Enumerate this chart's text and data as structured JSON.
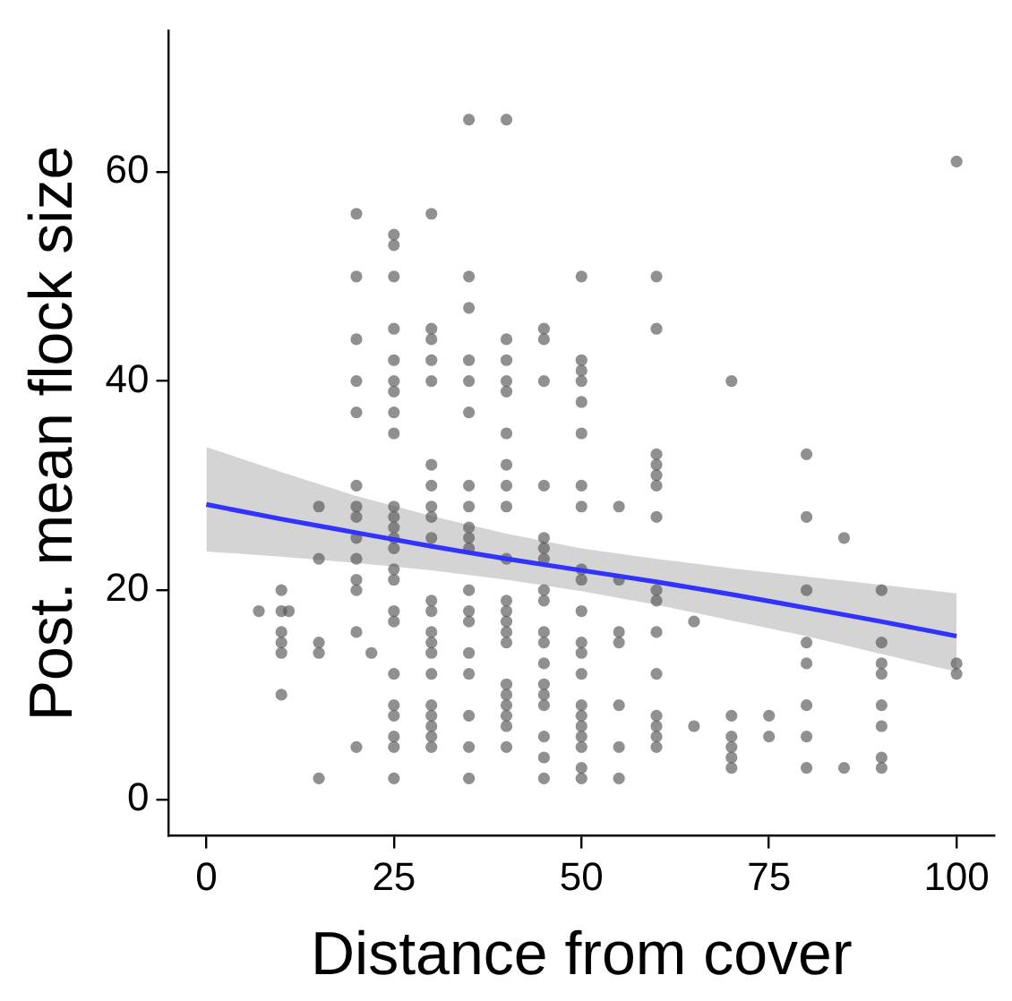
{
  "chart_data": {
    "type": "scatter",
    "xlabel": "Distance from cover",
    "ylabel": "Post. mean flock size",
    "xlim": [
      -5,
      105
    ],
    "xticks": [
      0,
      25,
      50,
      75,
      100
    ],
    "ylim": [
      -3.5,
      73.5
    ],
    "yticks": [
      0,
      20,
      40,
      60
    ],
    "grid": false,
    "legend": false,
    "marker": "circle",
    "series": [
      {
        "color": "#555555",
        "x": [
          7,
          10,
          10,
          10,
          10,
          10,
          10,
          11,
          15,
          15,
          15,
          15,
          15,
          20,
          20,
          20,
          20,
          20,
          20,
          20,
          20,
          20,
          20,
          20,
          20,
          20,
          20,
          22,
          25,
          25,
          25,
          25,
          25,
          25,
          25,
          25,
          25,
          25,
          25,
          25,
          25,
          25,
          25,
          25,
          25,
          25,
          25,
          25,
          25,
          25,
          25,
          25,
          30,
          30,
          30,
          30,
          30,
          30,
          30,
          30,
          30,
          30,
          30,
          30,
          30,
          30,
          30,
          30,
          30,
          30,
          30,
          30,
          30,
          35,
          35,
          35,
          35,
          35,
          35,
          35,
          35,
          35,
          35,
          35,
          35,
          35,
          35,
          35,
          35,
          35,
          35,
          35,
          40,
          40,
          40,
          40,
          40,
          40,
          40,
          40,
          40,
          40,
          40,
          40,
          40,
          40,
          40,
          40,
          40,
          40,
          40,
          40,
          40,
          45,
          45,
          45,
          45,
          45,
          45,
          45,
          45,
          45,
          45,
          45,
          45,
          45,
          45,
          45,
          45,
          45,
          45,
          50,
          50,
          50,
          50,
          50,
          50,
          50,
          50,
          50,
          50,
          50,
          50,
          50,
          50,
          50,
          50,
          50,
          50,
          50,
          50,
          50,
          55,
          55,
          55,
          55,
          55,
          55,
          55,
          60,
          60,
          60,
          60,
          60,
          60,
          60,
          60,
          60,
          60,
          60,
          60,
          60,
          60,
          60,
          65,
          65,
          70,
          70,
          70,
          70,
          70,
          70,
          75,
          75,
          80,
          80,
          80,
          80,
          80,
          80,
          80,
          80,
          85,
          85,
          90,
          90,
          90,
          90,
          90,
          90,
          90,
          90,
          100,
          100,
          100
        ],
        "values": [
          18,
          20,
          18,
          16,
          15,
          14,
          10,
          18,
          28,
          23,
          15,
          14,
          2,
          56,
          50,
          44,
          40,
          37,
          30,
          28,
          27,
          25,
          23,
          21,
          20,
          16,
          5,
          14,
          54,
          53,
          50,
          45,
          42,
          40,
          39,
          37,
          35,
          28,
          27,
          26,
          25,
          24,
          22,
          21,
          18,
          17,
          12,
          9,
          8,
          6,
          5,
          2,
          56,
          45,
          44,
          42,
          40,
          32,
          30,
          28,
          27,
          25,
          19,
          18,
          16,
          15,
          14,
          12,
          9,
          8,
          7,
          6,
          5,
          65,
          50,
          47,
          42,
          40,
          37,
          30,
          28,
          26,
          25,
          24,
          20,
          18,
          17,
          14,
          12,
          8,
          5,
          2,
          65,
          44,
          42,
          40,
          39,
          35,
          32,
          30,
          28,
          23,
          19,
          18,
          17,
          16,
          15,
          11,
          10,
          9,
          8,
          7,
          5,
          45,
          44,
          40,
          30,
          25,
          24,
          23,
          20,
          19,
          16,
          15,
          13,
          11,
          10,
          9,
          6,
          4,
          2,
          50,
          42,
          41,
          40,
          38,
          35,
          30,
          28,
          22,
          21,
          18,
          15,
          14,
          12,
          9,
          8,
          7,
          6,
          5,
          3,
          2,
          28,
          21,
          16,
          15,
          9,
          5,
          2,
          50,
          45,
          33,
          32,
          31,
          30,
          27,
          20,
          19,
          16,
          12,
          8,
          7,
          6,
          5,
          17,
          7,
          40,
          8,
          6,
          5,
          4,
          3,
          8,
          6,
          33,
          27,
          20,
          15,
          13,
          9,
          6,
          3,
          25,
          3,
          20,
          15,
          13,
          12,
          9,
          7,
          4,
          3,
          61,
          13,
          12
        ]
      },
      {
        "type": "line",
        "marker": "none",
        "color": "#3333ff",
        "x": [
          0,
          10,
          20,
          30,
          40,
          50,
          60,
          70,
          80,
          90,
          100
        ],
        "values": [
          28.2,
          26.8,
          25.5,
          24.2,
          23.0,
          21.9,
          20.8,
          19.6,
          18.3,
          17.0,
          15.6
        ],
        "lower": [
          23.7,
          23.2,
          22.6,
          21.9,
          21.0,
          19.9,
          18.6,
          17.1,
          15.6,
          13.9,
          12.2
        ],
        "upper": [
          33.7,
          31.3,
          29.0,
          27.1,
          25.4,
          24.0,
          23.0,
          22.1,
          21.3,
          20.5,
          19.7
        ]
      }
    ]
  }
}
